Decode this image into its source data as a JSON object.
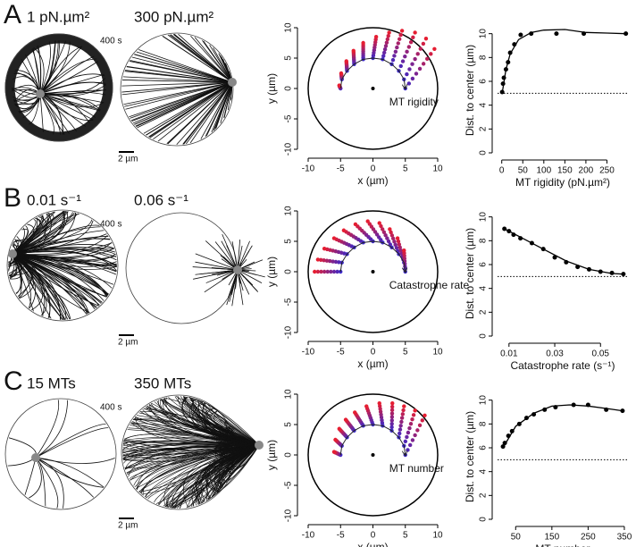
{
  "panels": [
    {
      "letter": "A",
      "labels": [
        "1 pN.µm²",
        "300 pN.µm²"
      ],
      "time": "400 s",
      "scale": "2 µm"
    },
    {
      "letter": "B",
      "labels": [
        "0.01 s⁻¹",
        "0.06 s⁻¹"
      ],
      "time": "400 s",
      "scale": "2 µm"
    },
    {
      "letter": "C",
      "labels": [
        "15 MTs",
        "350 MTs"
      ],
      "time": "400 s",
      "scale": "2 µm"
    }
  ],
  "chart_data": [
    {
      "type": "trajectory",
      "annotation": "MT rigidity",
      "xlabel": "x (µm)",
      "ylabel": "y (µm)",
      "xlim": [
        -10,
        10
      ],
      "ylim": [
        -10,
        10
      ],
      "xticks": [
        -10,
        -5,
        0,
        5,
        10
      ],
      "yticks": [
        -10,
        -5,
        0,
        5,
        10
      ],
      "x": [
        -5,
        -4.8,
        -4,
        -2.9,
        -1.5,
        0,
        1.5,
        2.9,
        4,
        4.8,
        5
      ],
      "y": [
        0,
        1.5,
        2.9,
        4,
        4.8,
        5,
        4.8,
        4,
        2.9,
        1.5,
        0
      ],
      "x_end": [
        -5.2,
        -4.9,
        -4.1,
        -3,
        -1.5,
        0.5,
        2.5,
        4.5,
        6.5,
        8.2,
        9.5
      ],
      "y_end": [
        0.5,
        2.5,
        4.5,
        6.2,
        7.5,
        8.5,
        9.2,
        9.5,
        9.2,
        8.2,
        6.5
      ]
    },
    {
      "type": "scatter",
      "xlabel": "MT rigidity (pN.µm²)",
      "ylabel": "Dist. to center (µm)",
      "xlim": [
        -10,
        300
      ],
      "ylim": [
        0,
        10.5
      ],
      "xticks": [
        0,
        50,
        100,
        150,
        200,
        250
      ],
      "yticks": [
        0,
        2,
        4,
        6,
        8,
        10
      ],
      "reference": 5,
      "x": [
        1,
        3,
        5,
        10,
        15,
        20,
        30,
        45,
        70,
        130,
        195,
        295
      ],
      "values": [
        5.1,
        5.8,
        6.3,
        7,
        7.6,
        8.4,
        9.1,
        9.9,
        10,
        10,
        10,
        10
      ],
      "curve": {
        "x": [
          1,
          10,
          20,
          40,
          70,
          100,
          150,
          200,
          250,
          295
        ],
        "values": [
          5,
          7,
          8.3,
          9.5,
          10.1,
          10.3,
          10.35,
          10.1,
          10.05,
          10
        ]
      }
    },
    {
      "type": "trajectory",
      "annotation": "Catastrophe rate",
      "xlabel": "x (µm)",
      "ylabel": "y (µm)",
      "xlim": [
        -10,
        10
      ],
      "ylim": [
        -10,
        10
      ],
      "xticks": [
        -10,
        -5,
        0,
        5,
        10
      ],
      "yticks": [
        -10,
        -5,
        0,
        5,
        10
      ],
      "x": [
        -5,
        -4.8,
        -4,
        -2.9,
        -1.5,
        0,
        1.5,
        2.9,
        4,
        4.8,
        5
      ],
      "y": [
        0,
        1.5,
        2.9,
        4,
        4.8,
        5,
        4.8,
        4,
        2.9,
        1.5,
        0
      ],
      "x_end": [
        -9,
        -8.5,
        -7.5,
        -6,
        -4.5,
        -2.7,
        -0.8,
        1,
        2.6,
        3.8,
        4.8
      ],
      "y_end": [
        0,
        2,
        3.8,
        5.5,
        6.8,
        7.8,
        8.3,
        8,
        7,
        5.5,
        3.5
      ]
    },
    {
      "type": "scatter",
      "xlabel": "Catastrophe rate (s⁻¹)",
      "ylabel": "Dist. to center (µm)",
      "xlim": [
        0.005,
        0.062
      ],
      "ylim": [
        0,
        10.5
      ],
      "xticks": [
        0.01,
        0.03,
        0.05
      ],
      "yticks": [
        0,
        2,
        4,
        6,
        8,
        10
      ],
      "reference": 5,
      "x": [
        0.008,
        0.01,
        0.012,
        0.015,
        0.02,
        0.025,
        0.03,
        0.035,
        0.04,
        0.045,
        0.05,
        0.055,
        0.06
      ],
      "values": [
        9,
        8.8,
        8.5,
        8.2,
        7.8,
        7.3,
        6.6,
        6.2,
        5.8,
        5.6,
        5.4,
        5.3,
        5.2
      ],
      "curve": {
        "x": [
          0.008,
          0.015,
          0.025,
          0.035,
          0.045,
          0.055,
          0.06
        ],
        "values": [
          9,
          8.3,
          7.3,
          6.3,
          5.6,
          5.25,
          5.2
        ]
      }
    },
    {
      "type": "trajectory",
      "annotation": "MT number",
      "xlabel": "x (µm)",
      "ylabel": "y (µm)",
      "xlim": [
        -10,
        10
      ],
      "ylim": [
        -10,
        10
      ],
      "xticks": [
        -10,
        -5,
        0,
        5,
        10
      ],
      "yticks": [
        -10,
        -5,
        0,
        5,
        10
      ],
      "x": [
        -5,
        -4.8,
        -4,
        -2.9,
        -1.5,
        0,
        1.5,
        2.9,
        4,
        4.8,
        5
      ],
      "y": [
        0,
        1.5,
        2.9,
        4,
        4.8,
        5,
        4.8,
        4,
        2.9,
        1.5,
        0
      ],
      "x_end": [
        -6,
        -5.8,
        -5.2,
        -4.2,
        -2.8,
        -1,
        1,
        3,
        4.8,
        6.5,
        8
      ],
      "y_end": [
        0.5,
        2.5,
        4.3,
        5.8,
        7,
        8,
        8.5,
        8.5,
        8,
        7.3,
        6.5
      ]
    },
    {
      "type": "scatter",
      "xlabel": "MT number",
      "ylabel": "Dist. to center (µm)",
      "xlim": [
        0,
        360
      ],
      "ylim": [
        0,
        10.5
      ],
      "xticks": [
        50,
        150,
        250,
        350
      ],
      "yticks": [
        0,
        2,
        4,
        6,
        8,
        10
      ],
      "reference": 5,
      "x": [
        15,
        20,
        30,
        40,
        60,
        80,
        100,
        130,
        160,
        210,
        250,
        300,
        345
      ],
      "values": [
        6.1,
        6.4,
        7,
        7.4,
        8,
        8.5,
        8.8,
        9.2,
        9.4,
        9.6,
        9.6,
        9.2,
        9.1
      ],
      "curve": {
        "x": [
          15,
          50,
          100,
          150,
          200,
          250,
          300,
          345
        ],
        "values": [
          6,
          7.8,
          8.9,
          9.5,
          9.6,
          9.5,
          9.3,
          9.1
        ]
      }
    }
  ]
}
